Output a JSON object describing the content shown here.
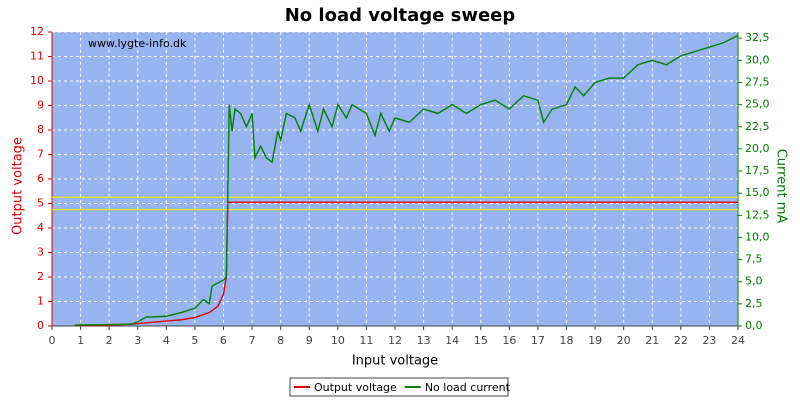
{
  "chart_data": {
    "type": "line",
    "title": "No load voltage sweep",
    "watermark": "www.lygte-info.dk",
    "xlabel": "Input voltage",
    "ylabel": "Output voltage",
    "y2label": "Current mA",
    "xlim": [
      0,
      24
    ],
    "xticks": [
      0,
      1,
      2,
      3,
      4,
      5,
      6,
      7,
      8,
      9,
      10,
      11,
      12,
      13,
      14,
      15,
      16,
      17,
      18,
      19,
      20,
      21,
      22,
      23,
      24
    ],
    "ylim": [
      0,
      12
    ],
    "yticks": [
      0,
      1,
      2,
      3,
      4,
      5,
      6,
      7,
      8,
      9,
      10,
      11,
      12
    ],
    "y2lim": [
      0,
      33.2
    ],
    "y2ticks": [
      {
        "value": 0,
        "label": "0,0"
      },
      {
        "value": 2.5,
        "label": "2,5"
      },
      {
        "value": 5,
        "label": "5,0"
      },
      {
        "value": 7.5,
        "label": "7,5"
      },
      {
        "value": 10,
        "label": "10,0"
      },
      {
        "value": 12.5,
        "label": "12,5"
      },
      {
        "value": 15,
        "label": "15,0"
      },
      {
        "value": 17.5,
        "label": "17,5"
      },
      {
        "value": 20,
        "label": "20,0"
      },
      {
        "value": 22.5,
        "label": "22,5"
      },
      {
        "value": 25,
        "label": "25,0"
      },
      {
        "value": 27.5,
        "label": "27,5"
      },
      {
        "value": 30,
        "label": "30,0"
      },
      {
        "value": 32.5,
        "label": "32,5"
      }
    ],
    "grid": true,
    "reference_lines": {
      "values": [
        5.25,
        4.75
      ],
      "color": "#e8e800"
    },
    "series": [
      {
        "name": "Output voltage",
        "color": "#e00000",
        "x": [
          0.8,
          2,
          3,
          4,
          4.5,
          5,
          5.5,
          5.8,
          6,
          6.1,
          6.15,
          24
        ],
        "values": [
          0.02,
          0.03,
          0.1,
          0.2,
          0.25,
          0.35,
          0.55,
          0.8,
          1.3,
          2,
          5.05,
          5.05
        ]
      },
      {
        "name": "No load current",
        "color": "#008000",
        "axis": "y2",
        "x": [
          0.8,
          2.8,
          3,
          3.3,
          4,
          4.5,
          5,
          5.3,
          5.5,
          5.6,
          6,
          6.1,
          6.15,
          6.2,
          6.3,
          6.4,
          6.6,
          6.8,
          7,
          7.1,
          7.3,
          7.5,
          7.7,
          7.9,
          8,
          8.2,
          8.5,
          8.7,
          9,
          9.3,
          9.5,
          9.8,
          10,
          10.3,
          10.5,
          11,
          11.3,
          11.5,
          11.8,
          12,
          12.5,
          13,
          13.5,
          14,
          14.5,
          15,
          15.5,
          16,
          16.5,
          17,
          17.2,
          17.5,
          18,
          18.3,
          18.6,
          19,
          19.5,
          20,
          20.5,
          21,
          21.5,
          22,
          22.5,
          23,
          23.5,
          24
        ],
        "values": [
          0.1,
          0.2,
          0.5,
          1,
          1.1,
          1.5,
          2,
          3,
          2.5,
          4.5,
          5.2,
          5.5,
          15,
          25,
          22,
          24.5,
          24,
          22.5,
          24,
          19,
          20.3,
          19,
          18.5,
          22,
          21,
          24,
          23.5,
          22,
          25,
          22,
          24.5,
          22.5,
          25,
          23.5,
          25,
          24,
          21.5,
          24,
          22,
          23.5,
          23,
          24.5,
          24,
          25,
          24,
          25,
          25.5,
          24.5,
          26,
          25.5,
          23,
          24.5,
          25,
          27,
          26,
          27.5,
          28,
          28,
          29.5,
          30,
          29.5,
          30.5,
          31,
          31.5,
          32,
          32.8
        ]
      }
    ]
  }
}
